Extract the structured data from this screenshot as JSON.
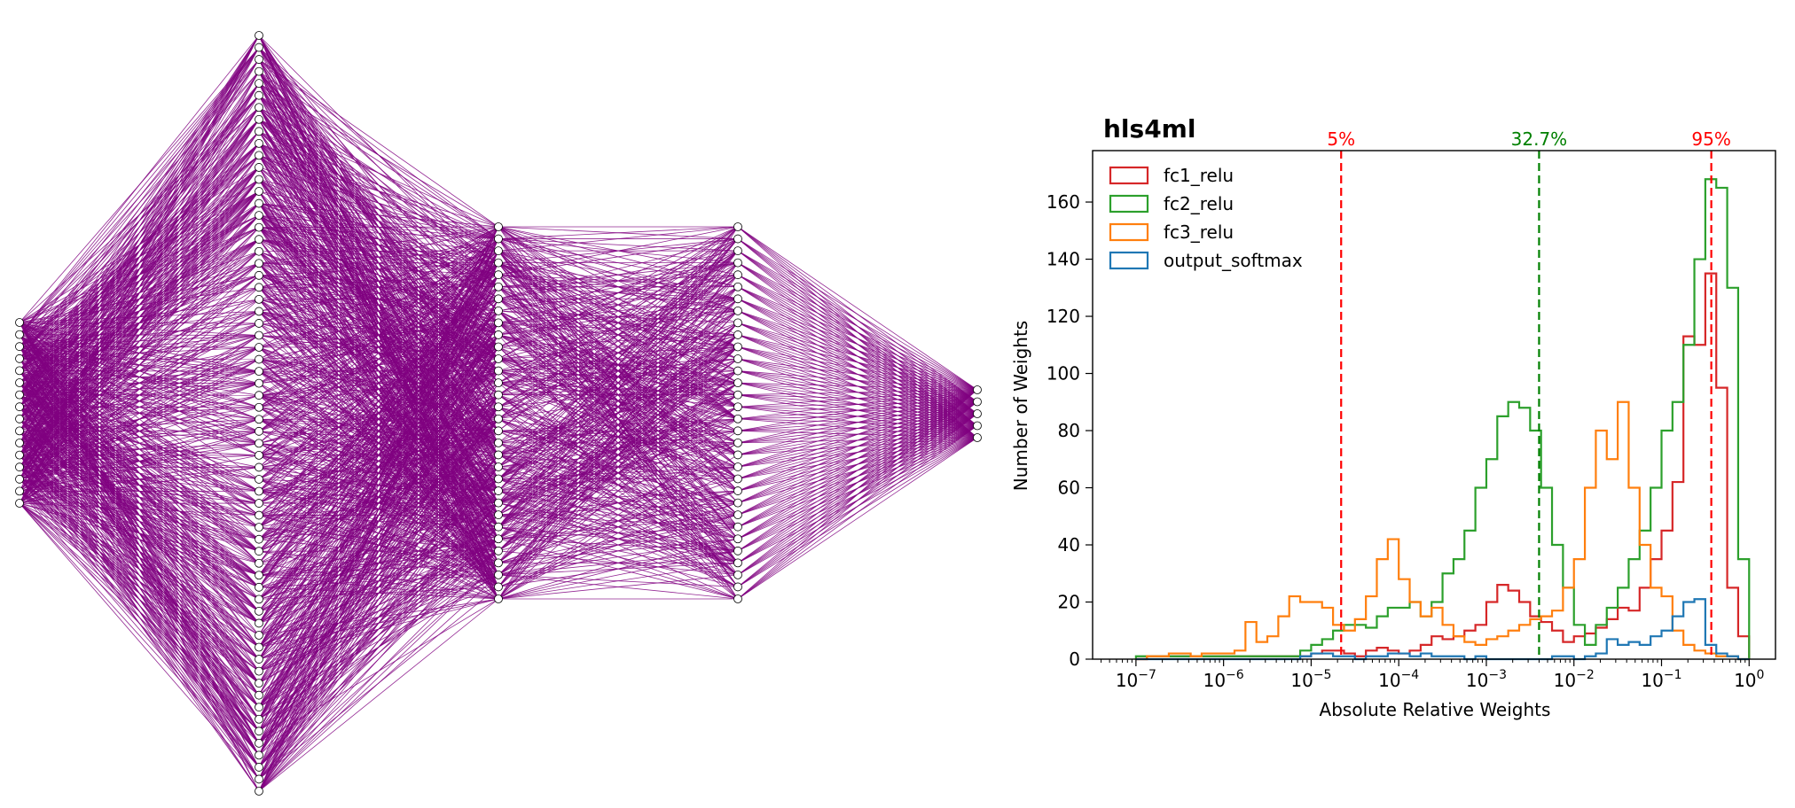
{
  "network_diagram": {
    "layers": [
      {
        "nodes": 16
      },
      {
        "nodes": 64
      },
      {
        "nodes": 32
      },
      {
        "nodes": 32
      },
      {
        "nodes": 5
      }
    ],
    "edge_color": "#800080"
  },
  "chart_data": {
    "type": "histogram",
    "title": "hls4ml",
    "xlabel": "Absolute Relative Weights",
    "ylabel": "Number of Weights",
    "xscale": "log",
    "xlim": [
      3.2e-08,
      2.0
    ],
    "ylim": [
      0,
      178
    ],
    "x_ticks": [
      {
        "value": 1e-07,
        "base": "10",
        "exp": "−7"
      },
      {
        "value": 1e-06,
        "base": "10",
        "exp": "−6"
      },
      {
        "value": 1e-05,
        "base": "10",
        "exp": "−5"
      },
      {
        "value": 0.0001,
        "base": "10",
        "exp": "−4"
      },
      {
        "value": 0.001,
        "base": "10",
        "exp": "−3"
      },
      {
        "value": 0.01,
        "base": "10",
        "exp": "−2"
      },
      {
        "value": 0.1,
        "base": "10",
        "exp": "−1"
      },
      {
        "value": 1,
        "base": "10",
        "exp": "0"
      }
    ],
    "y_ticks": [
      0,
      20,
      40,
      60,
      80,
      100,
      120,
      140,
      160
    ],
    "bins": {
      "log10_min": -7,
      "log10_max": 0,
      "count": 56
    },
    "legend_position": "top-left",
    "series": [
      {
        "name": "fc1_relu",
        "color": "#d62728",
        "values": [
          0,
          1,
          1,
          1,
          1,
          1,
          1,
          1,
          1,
          1,
          1,
          1,
          1,
          1,
          1,
          1,
          2,
          3,
          3,
          2,
          1,
          3,
          4,
          3,
          2,
          3,
          5,
          8,
          7,
          8,
          10,
          12,
          20,
          26,
          24,
          20,
          15,
          13,
          10,
          6,
          8,
          9,
          11,
          14,
          18,
          17,
          25,
          35,
          45,
          62,
          113,
          110,
          135,
          95,
          25,
          8
        ]
      },
      {
        "name": "fc2_relu",
        "color": "#2ca02c",
        "values": [
          1,
          1,
          1,
          1,
          1,
          1,
          1,
          1,
          1,
          1,
          1,
          1,
          1,
          1,
          1,
          3,
          5,
          7,
          10,
          12,
          12,
          11,
          15,
          18,
          18,
          20,
          15,
          20,
          30,
          35,
          45,
          60,
          70,
          85,
          90,
          88,
          80,
          60,
          40,
          25,
          12,
          5,
          12,
          18,
          25,
          35,
          45,
          60,
          80,
          90,
          110,
          140,
          168,
          165,
          130,
          35
        ]
      },
      {
        "name": "fc3_relu",
        "color": "#ff7f0e",
        "values": [
          0,
          1,
          1,
          2,
          2,
          1,
          2,
          2,
          2,
          3,
          13,
          6,
          8,
          15,
          22,
          20,
          20,
          18,
          12,
          10,
          14,
          22,
          35,
          42,
          28,
          20,
          15,
          18,
          12,
          8,
          6,
          5,
          7,
          8,
          10,
          12,
          14,
          15,
          17,
          25,
          35,
          60,
          80,
          70,
          90,
          60,
          40,
          25,
          22,
          10,
          5,
          3,
          2,
          1,
          1,
          0
        ]
      },
      {
        "name": "output_softmax",
        "color": "#1f77b4",
        "values": [
          0,
          0,
          0,
          0,
          0,
          0,
          0,
          0,
          0,
          0,
          0,
          0,
          0,
          0,
          0,
          1,
          2,
          2,
          1,
          1,
          0,
          1,
          1,
          2,
          2,
          1,
          2,
          1,
          1,
          1,
          0,
          1,
          0,
          0,
          0,
          0,
          0,
          0,
          1,
          1,
          0,
          1,
          2,
          7,
          5,
          6,
          5,
          8,
          10,
          15,
          20,
          21,
          5,
          2,
          1,
          0
        ]
      }
    ],
    "annotations": [
      {
        "label": "5%",
        "x": 2.2e-05,
        "color": "#ff0000"
      },
      {
        "label": "32.7%",
        "x": 0.004,
        "color": "#008000"
      },
      {
        "label": "95%",
        "x": 0.37,
        "color": "#ff0000"
      }
    ]
  }
}
